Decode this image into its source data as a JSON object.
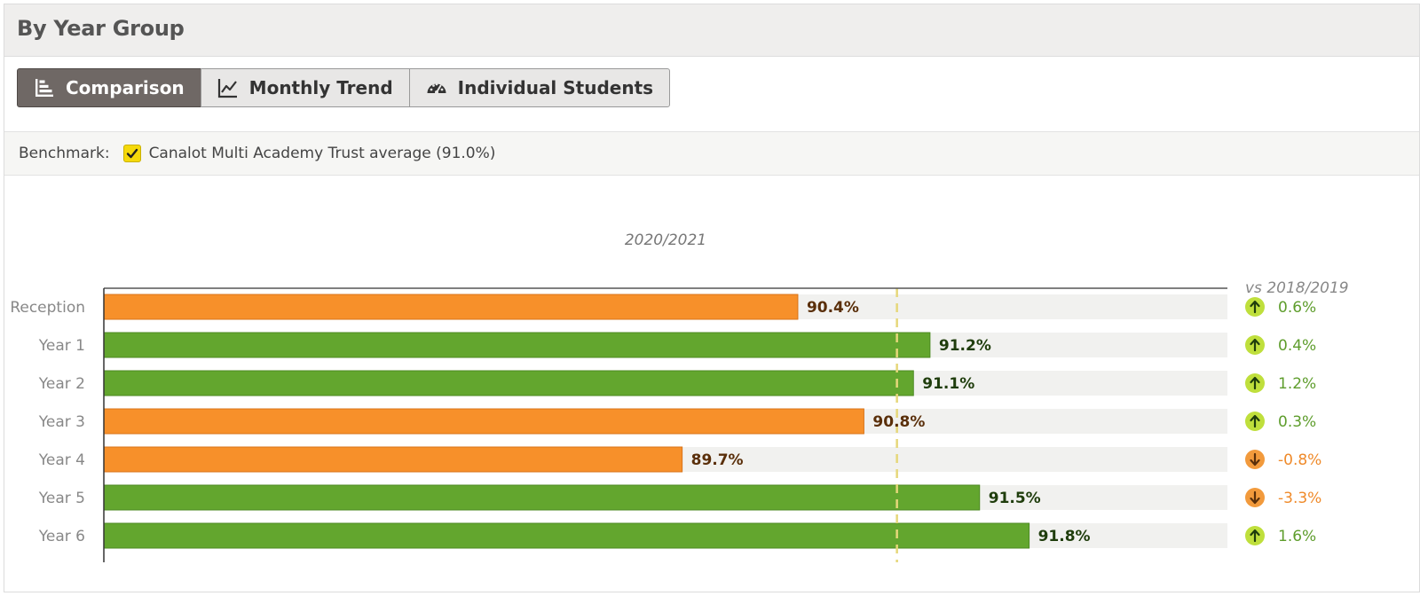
{
  "header": {
    "title": "By Year Group"
  },
  "tabs": [
    {
      "label": "Comparison",
      "icon": "bar-chart-icon",
      "active": true
    },
    {
      "label": "Monthly Trend",
      "icon": "line-chart-icon",
      "active": false
    },
    {
      "label": "Individual Students",
      "icon": "dashboard-icon",
      "active": false
    }
  ],
  "benchmark": {
    "label": "Benchmark:",
    "checked": true,
    "option": "Canalot Multi Academy Trust average (91.0%)"
  },
  "colors": {
    "above": "#63a62e",
    "below": "#f7902a",
    "track": "#f1f1ef",
    "benchmark_line": "#e6d77a",
    "up_badge": "#bfdf3c",
    "down_badge": "#f29a3c",
    "up_text": "#5e9d2c",
    "down_text": "#ef8a2a"
  },
  "chart_data": {
    "type": "bar",
    "orientation": "horizontal",
    "title": "2020/2021",
    "unit": "%",
    "xlim": [
      86.2,
      93.0
    ],
    "benchmark": 91.0,
    "categories": [
      "Reception",
      "Year 1",
      "Year 2",
      "Year 3",
      "Year 4",
      "Year 5",
      "Year 6"
    ],
    "values": [
      90.4,
      91.2,
      91.1,
      90.8,
      89.7,
      91.5,
      91.8
    ],
    "value_labels": [
      "90.4%",
      "91.2%",
      "91.1%",
      "90.8%",
      "89.7%",
      "91.5%",
      "91.8%"
    ],
    "comparison": {
      "header": "vs 2018/2019",
      "values": [
        0.6,
        0.4,
        1.2,
        0.3,
        -0.8,
        -3.3,
        1.6
      ],
      "labels": [
        "0.6%",
        "0.4%",
        "1.2%",
        "0.3%",
        "-0.8%",
        "-3.3%",
        "1.6%"
      ]
    }
  }
}
